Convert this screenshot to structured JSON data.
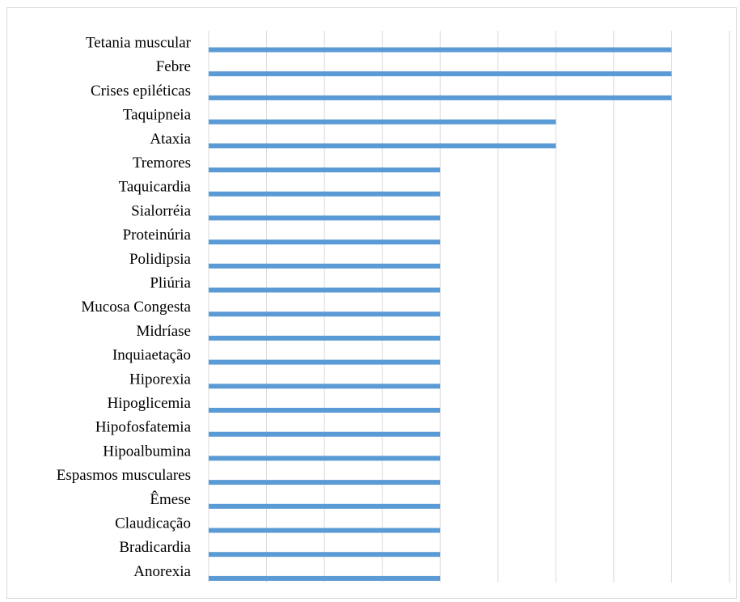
{
  "chart_data": {
    "type": "bar",
    "orientation": "horizontal",
    "categories": [
      "Tetania muscular",
      "Febre",
      "Crises epiléticas",
      "Taquipneia",
      "Ataxia",
      "Tremores",
      "Taquicardia",
      "Sialorréia",
      "Proteinúria",
      "Polidipsia",
      "Pliúria",
      "Mucosa Congesta",
      "Midríase",
      "Inquiaetação",
      "Hiporexia",
      "Hipoglicemia",
      "Hipofosfatemia",
      "Hipoalbumina",
      "Espasmos musculares",
      "Êmese",
      "Claudicação",
      "Bradicardia",
      "Anorexia"
    ],
    "values": [
      4,
      4,
      4,
      3,
      3,
      2,
      2,
      2,
      2,
      2,
      2,
      2,
      2,
      2,
      2,
      2,
      2,
      2,
      2,
      2,
      2,
      2,
      2
    ],
    "xlim": [
      0,
      4.5
    ],
    "major_unit": 0.5,
    "grid": true,
    "legend": "none",
    "bar_color": "#5b9bd5",
    "grid_color": "#d9d9d9"
  }
}
